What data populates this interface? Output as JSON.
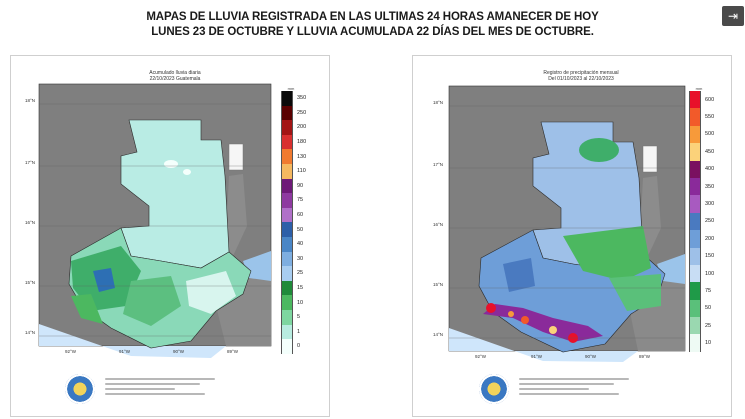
{
  "header": {
    "title_line1": "MAPAS DE LLUVIA REGISTRADA EN LAS ULTIMAS 24 HORAS AMANECER DE HOY",
    "title_line2": "LUNES 23 DE OCTUBRE Y LLUVIA  ACUMULADA 22 DÍAS DEL MES DE OCTUBRE.",
    "corner_icon": "exit-icon"
  },
  "maps": [
    {
      "title_line1": "Acumulado lluvia diaria",
      "title_line2": "22/10/2023 Guatemala",
      "units": "mm",
      "legend_values": [
        "350",
        "250",
        "200",
        "180",
        "130",
        "110",
        "90",
        "75",
        "60",
        "50",
        "40",
        "30",
        "25",
        "15",
        "10",
        "5",
        "1",
        "0"
      ],
      "legend_colors": [
        "#0a0a0a",
        "#5a0000",
        "#a31515",
        "#d93030",
        "#f07a30",
        "#f5b860",
        "#6e1a78",
        "#8e3aa0",
        "#b070c8",
        "#2d5fa8",
        "#4a86c6",
        "#7eaee0",
        "#a8cdf0",
        "#1f8a3a",
        "#4cb860",
        "#7ed6a0",
        "#b8ece0",
        "#f4fffc"
      ],
      "lat_labels": [
        "18°N",
        "17°N",
        "16°N",
        "15°N",
        "14°N"
      ],
      "lon_labels": [
        "92°W",
        "91°W",
        "90°W",
        "89°W"
      ]
    },
    {
      "title_line1": "Registro de precipitación mensual",
      "title_line2": "Del 01/10/2023 al 22/10/2023",
      "units": "mm",
      "legend_values": [
        "600",
        "550",
        "500",
        "450",
        "400",
        "350",
        "300",
        "250",
        "200",
        "150",
        "100",
        "75",
        "50",
        "25",
        "10"
      ],
      "legend_colors": [
        "#e8102a",
        "#f25a2a",
        "#f79a3a",
        "#fbd27a",
        "#7a1060",
        "#8a2a9a",
        "#a85ac0",
        "#4a7ac0",
        "#6e9ed8",
        "#9ec0e8",
        "#c8ddf4",
        "#1f9a48",
        "#5ac07a",
        "#9ad8b0",
        "#eefaf4"
      ],
      "lat_labels": [
        "18°N",
        "17°N",
        "16°N",
        "15°N",
        "14°N"
      ],
      "lon_labels": [
        "92°W",
        "91°W",
        "90°W",
        "89°W"
      ]
    }
  ]
}
